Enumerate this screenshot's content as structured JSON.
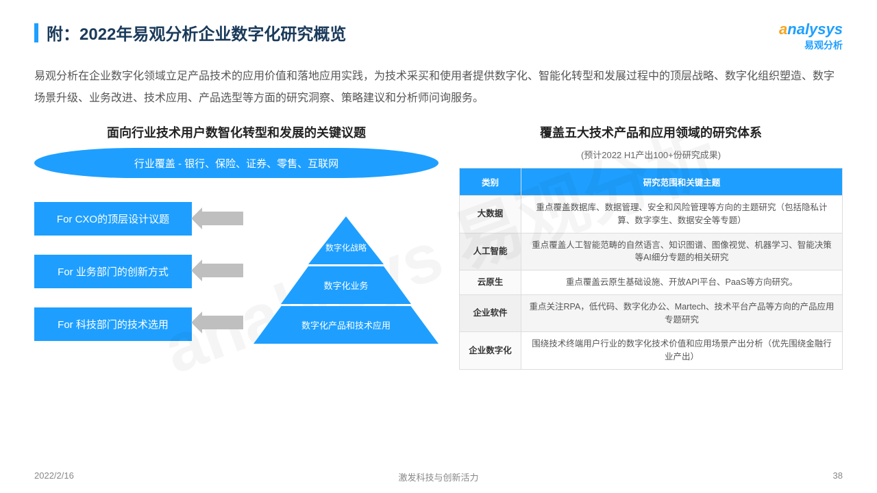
{
  "header": {
    "title": "附：2022年易观分析企业数字化研究概览",
    "logo_main_prefix": "a",
    "logo_main": "nalysys",
    "logo_sub": "易观分析"
  },
  "intro": "易观分析在企业数字化领域立足产品技术的应用价值和落地应用实践，为技术采买和使用者提供数字化、智能化转型和发展过程中的顶层战略、数字化组织塑造、数字场景升级、业务改进、技术应用、产品选型等方面的研究洞察、策略建议和分析师问询服务。",
  "left": {
    "title": "面向行业技术用户数智化转型和发展的关键议题",
    "ellipse": "行业覆盖 - 银行、保险、证券、零售、互联网",
    "boxes": [
      "For CXO的顶层设计议题",
      "For 业务部门的创新方式",
      "For 科技部门的技术选用"
    ],
    "pyramid": {
      "top": "数字化战略",
      "mid": "数字化业务",
      "bot": "数字化产品和技术应用"
    }
  },
  "right": {
    "title": "覆盖五大技术产品和应用领域的研究体系",
    "subtitle": "(预计2022 H1产出100+份研究成果)",
    "columns": [
      "类别",
      "研究范围和关键主题"
    ],
    "rows": [
      {
        "cat": "大数据",
        "desc": "重点覆盖数据库、数据管理、安全和风险管理等方向的主题研究（包括隐私计算、数字孪生、数据安全等专题）"
      },
      {
        "cat": "人工智能",
        "desc": "重点覆盖人工智能范畴的自然语言、知识图谱、图像视觉、机器学习、智能决策等AI细分专题的相关研究"
      },
      {
        "cat": "云原生",
        "desc": "重点覆盖云原生基础设施、开放API平台、PaaS等方向研究。"
      },
      {
        "cat": "企业软件",
        "desc": "重点关注RPA，低代码、数字化办公、Martech、技术平台产品等方向的产品应用专题研究"
      },
      {
        "cat": "企业数字化",
        "desc": "围绕技术终端用户行业的数字化技术价值和应用场景产出分析（优先围绕金融行业产出）"
      }
    ]
  },
  "footer": {
    "date": "2022/2/16",
    "center": "激发科技与创新活力",
    "page": "38"
  },
  "watermark": "analysys 易观分析",
  "colors": {
    "primary": "#1E9FFF",
    "accent": "#f5a623",
    "arrow": "#bfbfbf"
  }
}
